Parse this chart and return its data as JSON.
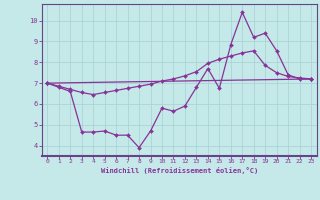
{
  "xlabel": "Windchill (Refroidissement éolien,°C)",
  "xlim": [
    -0.5,
    23.5
  ],
  "ylim": [
    3.5,
    10.8
  ],
  "yticks": [
    4,
    5,
    6,
    7,
    8,
    9,
    10
  ],
  "xticks": [
    0,
    1,
    2,
    3,
    4,
    5,
    6,
    7,
    8,
    9,
    10,
    11,
    12,
    13,
    14,
    15,
    16,
    17,
    18,
    19,
    20,
    21,
    22,
    23
  ],
  "bg_color": "#c5e8e8",
  "grid_color": "#aad4d4",
  "line_color": "#883399",
  "border_color": "#664488",
  "marker_size": 2.0,
  "line_width": 0.9,
  "series1_x": [
    0,
    1,
    2,
    3,
    4,
    5,
    6,
    7,
    8,
    9,
    10,
    11,
    12,
    13,
    14,
    15,
    16,
    17,
    18,
    19,
    20,
    21,
    22,
    23
  ],
  "series1_y": [
    7.0,
    6.8,
    6.6,
    4.65,
    4.65,
    4.7,
    4.5,
    4.5,
    3.9,
    4.7,
    5.8,
    5.65,
    5.9,
    6.8,
    7.7,
    6.75,
    8.85,
    10.4,
    9.2,
    9.4,
    8.55,
    7.4,
    7.2,
    7.2
  ],
  "series2_x": [
    0,
    1,
    2,
    3,
    4,
    5,
    6,
    7,
    8,
    9,
    10,
    11,
    12,
    13,
    14,
    15,
    16,
    17,
    18,
    19,
    20,
    21,
    22,
    23
  ],
  "series2_y": [
    7.0,
    6.85,
    6.7,
    6.55,
    6.45,
    6.55,
    6.65,
    6.75,
    6.85,
    6.95,
    7.1,
    7.2,
    7.35,
    7.55,
    7.95,
    8.15,
    8.3,
    8.45,
    8.55,
    7.85,
    7.5,
    7.32,
    7.25,
    7.2
  ],
  "series3_x": [
    0,
    23
  ],
  "series3_y": [
    7.0,
    7.2
  ]
}
